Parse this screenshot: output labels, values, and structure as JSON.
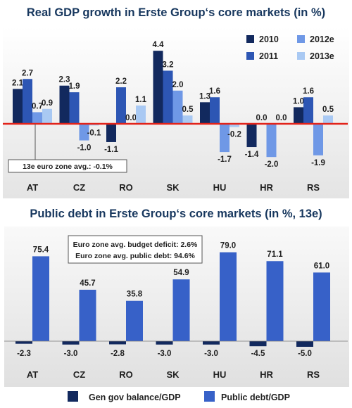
{
  "chart_data": [
    {
      "type": "bar",
      "title": "Real GDP growth in Erste Group‘s core markets (in %)",
      "categories": [
        "AT",
        "CZ",
        "RO",
        "SK",
        "HU",
        "HR",
        "RS"
      ],
      "series": [
        {
          "name": "2010",
          "color": "#12295e",
          "values": [
            2.1,
            2.3,
            -1.1,
            4.4,
            1.3,
            -1.4,
            1.0
          ]
        },
        {
          "name": "2011",
          "color": "#2d56b4",
          "values": [
            2.7,
            1.9,
            2.2,
            3.2,
            1.6,
            0.0,
            1.6
          ]
        },
        {
          "name": "2012e",
          "color": "#6f98e6",
          "values": [
            0.7,
            -1.0,
            0.0,
            2.0,
            -1.7,
            -2.0,
            -1.9
          ]
        },
        {
          "name": "2013e",
          "color": "#a9c9f3",
          "values": [
            0.9,
            -0.1,
            1.1,
            0.5,
            -0.2,
            0.0,
            0.5
          ]
        }
      ],
      "zero_line_color": "#e2231a",
      "annotation": "13e euro zone avg.: -0.1%",
      "legend_position": "top-right",
      "ylim": [
        -2.4,
        4.8
      ]
    },
    {
      "type": "bar",
      "title": "Public debt in Erste Group‘s core markets (in %, 13e)",
      "categories": [
        "AT",
        "CZ",
        "RO",
        "SK",
        "HU",
        "HR",
        "RS"
      ],
      "series": [
        {
          "name": "Gen gov balance/GDP",
          "color": "#12295e",
          "values": [
            -2.3,
            -3.0,
            -2.8,
            -3.0,
            -3.0,
            -4.5,
            -5.0
          ]
        },
        {
          "name": "Public debt/GDP",
          "color": "#3761c8",
          "values": [
            75.4,
            45.7,
            35.8,
            54.9,
            79.0,
            71.1,
            61.0
          ]
        }
      ],
      "annotations": [
        "Euro zone avg. budget deficit: 2.6%",
        "Euro zone avg. public debt: 94.6%"
      ],
      "legend_position": "bottom",
      "ylim": [
        -8,
        90
      ]
    }
  ]
}
